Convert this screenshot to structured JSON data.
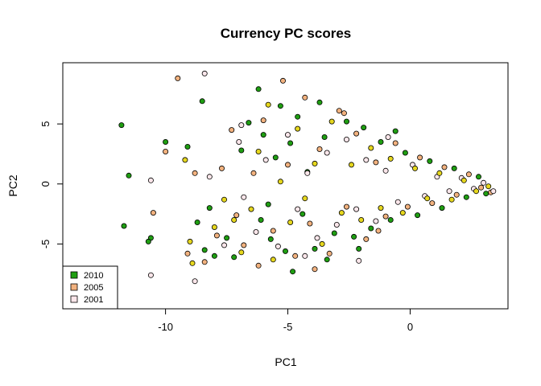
{
  "chart_data": {
    "type": "scatter",
    "title": "Currency PC scores",
    "xlabel": "PC1",
    "ylabel": "PC2",
    "xlim": [
      -14.2,
      4.0
    ],
    "ylim": [
      -10.4,
      10.1
    ],
    "x_ticks": [
      -10,
      -5,
      0
    ],
    "x_tick_labels": [
      "-10",
      "-5",
      "0"
    ],
    "y_ticks": [
      -5,
      0,
      5
    ],
    "y_tick_labels": [
      "-5",
      "0",
      "5"
    ],
    "grid": false,
    "legend_position": "bottom-left",
    "series": [
      {
        "name": "2010",
        "color": "#1f9e12",
        "points": [
          [
            -11.8,
            4.9
          ],
          [
            -11.5,
            0.7
          ],
          [
            -11.7,
            -3.5
          ],
          [
            -10.6,
            -4.5
          ],
          [
            -10.7,
            -4.8
          ],
          [
            -10.0,
            3.5
          ],
          [
            -8.5,
            6.9
          ],
          [
            -9.1,
            3.1
          ],
          [
            -8.7,
            -3.2
          ],
          [
            -8.2,
            -2.0
          ],
          [
            -8.4,
            -5.5
          ],
          [
            -8.0,
            -6.0
          ],
          [
            -7.5,
            -4.5
          ],
          [
            -7.2,
            -6.1
          ],
          [
            -6.9,
            2.8
          ],
          [
            -6.6,
            5.1
          ],
          [
            -6.2,
            7.9
          ],
          [
            -6.0,
            4.1
          ],
          [
            -6.1,
            -3.0
          ],
          [
            -5.7,
            -4.6
          ],
          [
            -5.3,
            6.5
          ],
          [
            -5.8,
            -1.7
          ],
          [
            -5.5,
            2.2
          ],
          [
            -5.1,
            -5.6
          ],
          [
            -4.9,
            3.4
          ],
          [
            -4.6,
            5.6
          ],
          [
            -4.4,
            -2.5
          ],
          [
            -4.2,
            1.0
          ],
          [
            -3.7,
            6.8
          ],
          [
            -3.9,
            -5.4
          ],
          [
            -3.5,
            3.9
          ],
          [
            -3.1,
            -4.1
          ],
          [
            -2.6,
            5.2
          ],
          [
            -2.3,
            -4.4
          ],
          [
            -1.9,
            4.7
          ],
          [
            -1.6,
            -3.7
          ],
          [
            -1.2,
            3.5
          ],
          [
            -0.8,
            -3.0
          ],
          [
            -0.6,
            4.4
          ],
          [
            -0.2,
            2.6
          ],
          [
            0.3,
            -2.6
          ],
          [
            0.8,
            1.9
          ],
          [
            1.3,
            -2.0
          ],
          [
            1.8,
            1.3
          ],
          [
            2.3,
            -1.1
          ],
          [
            2.8,
            0.6
          ],
          [
            3.1,
            -0.8
          ],
          [
            -4.8,
            -7.3
          ],
          [
            -3.4,
            -6.3
          ],
          [
            -2.1,
            -5.4
          ]
        ]
      },
      {
        "name": "2005",
        "color": "#f2b27f",
        "points": [
          [
            -9.5,
            8.8
          ],
          [
            -10.0,
            2.7
          ],
          [
            -10.5,
            -2.4
          ],
          [
            -9.1,
            -5.8
          ],
          [
            -8.8,
            0.9
          ],
          [
            -8.4,
            -6.5
          ],
          [
            -7.9,
            -4.3
          ],
          [
            -7.7,
            1.3
          ],
          [
            -7.3,
            4.5
          ],
          [
            -7.1,
            -2.6
          ],
          [
            -6.8,
            -5.1
          ],
          [
            -6.4,
            0.9
          ],
          [
            -6.2,
            -6.8
          ],
          [
            -6.0,
            5.3
          ],
          [
            -5.6,
            -3.9
          ],
          [
            -5.2,
            8.6
          ],
          [
            -5.0,
            1.6
          ],
          [
            -4.7,
            -6.0
          ],
          [
            -4.3,
            7.2
          ],
          [
            -4.1,
            -3.3
          ],
          [
            -3.7,
            2.9
          ],
          [
            -3.3,
            -5.8
          ],
          [
            -2.9,
            6.1
          ],
          [
            -2.6,
            -1.9
          ],
          [
            -2.2,
            4.2
          ],
          [
            -1.8,
            -4.6
          ],
          [
            -1.4,
            1.8
          ],
          [
            -1.0,
            -2.7
          ],
          [
            -0.6,
            3.4
          ],
          [
            -0.1,
            -1.9
          ],
          [
            0.4,
            2.2
          ],
          [
            0.9,
            -1.6
          ],
          [
            1.4,
            1.4
          ],
          [
            1.9,
            -0.9
          ],
          [
            2.4,
            0.8
          ],
          [
            2.9,
            -0.3
          ],
          [
            3.3,
            -0.7
          ],
          [
            -3.9,
            -7.1
          ],
          [
            -2.7,
            5.9
          ],
          [
            -1.3,
            -3.9
          ]
        ]
      },
      {
        "name": "2001",
        "color": "#fbe6ea",
        "points": [
          [
            -8.4,
            9.2
          ],
          [
            -10.6,
            0.3
          ],
          [
            -10.6,
            -7.6
          ],
          [
            -8.8,
            -8.1
          ],
          [
            -8.2,
            0.6
          ],
          [
            -7.6,
            -5.1
          ],
          [
            -7.0,
            3.5
          ],
          [
            -6.8,
            -1.1
          ],
          [
            -6.3,
            -4.0
          ],
          [
            -5.9,
            2.0
          ],
          [
            -5.4,
            -5.2
          ],
          [
            -5.0,
            4.1
          ],
          [
            -4.6,
            -2.1
          ],
          [
            -4.2,
            0.9
          ],
          [
            -3.8,
            -4.5
          ],
          [
            -3.4,
            2.6
          ],
          [
            -3.0,
            -3.4
          ],
          [
            -2.6,
            3.7
          ],
          [
            -2.2,
            -2.1
          ],
          [
            -1.8,
            2.0
          ],
          [
            -1.4,
            -3.1
          ],
          [
            -1.0,
            1.1
          ],
          [
            -0.5,
            -1.5
          ],
          [
            0.1,
            1.6
          ],
          [
            0.6,
            -1.0
          ],
          [
            1.1,
            0.6
          ],
          [
            1.6,
            -0.6
          ],
          [
            2.1,
            0.5
          ],
          [
            2.6,
            -0.4
          ],
          [
            3.0,
            0.1
          ],
          [
            3.4,
            -0.6
          ],
          [
            -6.9,
            4.9
          ],
          [
            -4.3,
            -6.0
          ],
          [
            -2.1,
            -6.4
          ],
          [
            -0.9,
            3.9
          ]
        ]
      },
      {
        "name": "",
        "color": "#e6d71e",
        "points": [
          [
            -9.2,
            2.0
          ],
          [
            -9.0,
            -4.8
          ],
          [
            -8.9,
            -6.6
          ],
          [
            -8.0,
            -3.6
          ],
          [
            -7.6,
            -1.3
          ],
          [
            -7.2,
            -3.0
          ],
          [
            -6.9,
            -5.7
          ],
          [
            -6.5,
            -2.1
          ],
          [
            -6.2,
            2.7
          ],
          [
            -5.8,
            6.6
          ],
          [
            -5.6,
            -6.3
          ],
          [
            -5.3,
            0.2
          ],
          [
            -4.9,
            -3.2
          ],
          [
            -4.6,
            4.6
          ],
          [
            -4.3,
            -1.2
          ],
          [
            -3.9,
            1.7
          ],
          [
            -3.6,
            -5.0
          ],
          [
            -3.2,
            5.2
          ],
          [
            -2.8,
            -2.4
          ],
          [
            -2.4,
            1.6
          ],
          [
            -2.0,
            -3.0
          ],
          [
            -1.6,
            3.0
          ],
          [
            -1.2,
            -2.0
          ],
          [
            -0.8,
            2.1
          ],
          [
            -0.3,
            -2.4
          ],
          [
            0.2,
            1.3
          ],
          [
            0.7,
            -1.2
          ],
          [
            1.2,
            0.9
          ],
          [
            1.7,
            -1.3
          ],
          [
            2.2,
            0.3
          ],
          [
            2.7,
            -0.6
          ],
          [
            3.2,
            -0.2
          ]
        ]
      }
    ],
    "legend_entries": [
      {
        "label": "2010",
        "color": "#1f9e12"
      },
      {
        "label": "2005",
        "color": "#f2b27f"
      },
      {
        "label": "2001",
        "color": "#fbe6ea"
      }
    ]
  }
}
